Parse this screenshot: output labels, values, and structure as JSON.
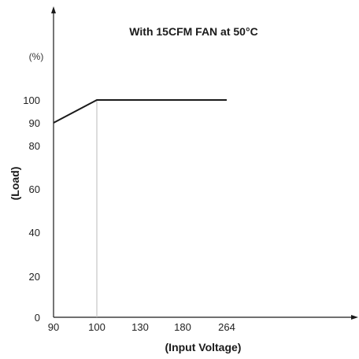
{
  "chart_data": {
    "type": "line",
    "title": "With 15CFM FAN at 50°C",
    "xlabel": "(Input Voltage)",
    "ylabel": "(Load)",
    "y_unit": "(%)",
    "x_ticks": [
      "90",
      "100",
      "130",
      "180",
      "264"
    ],
    "y_ticks": [
      "0",
      "20",
      "40",
      "60",
      "80",
      "90",
      "100"
    ],
    "xlim": [
      90,
      275
    ],
    "ylim": [
      0,
      100
    ],
    "series": [
      {
        "x": [
          90,
          100,
          264
        ],
        "y": [
          90,
          100,
          100
        ],
        "color": "#1a1a1a"
      }
    ],
    "annotations": [
      {
        "type": "vertical_line",
        "x": 100,
        "from_y": 0,
        "to_y": 100,
        "color": "#bbbbbb"
      }
    ]
  }
}
